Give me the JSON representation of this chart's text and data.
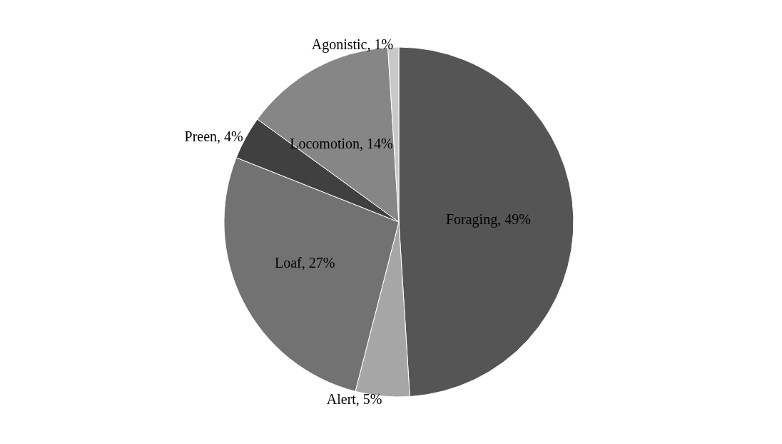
{
  "chart_data": {
    "type": "pie",
    "categories": [
      "Foraging",
      "Alert",
      "Loaf",
      "Preen",
      "Locomotion",
      "Agonistic"
    ],
    "values": [
      49,
      5,
      27,
      4,
      14,
      1
    ],
    "colors": [
      "#555555",
      "#a6a6a6",
      "#727272",
      "#404040",
      "#868686",
      "#c8c8c8"
    ],
    "value_labels": [
      "49%",
      "5%",
      "27%",
      "4%",
      "14%",
      "1%"
    ],
    "legend": false
  }
}
